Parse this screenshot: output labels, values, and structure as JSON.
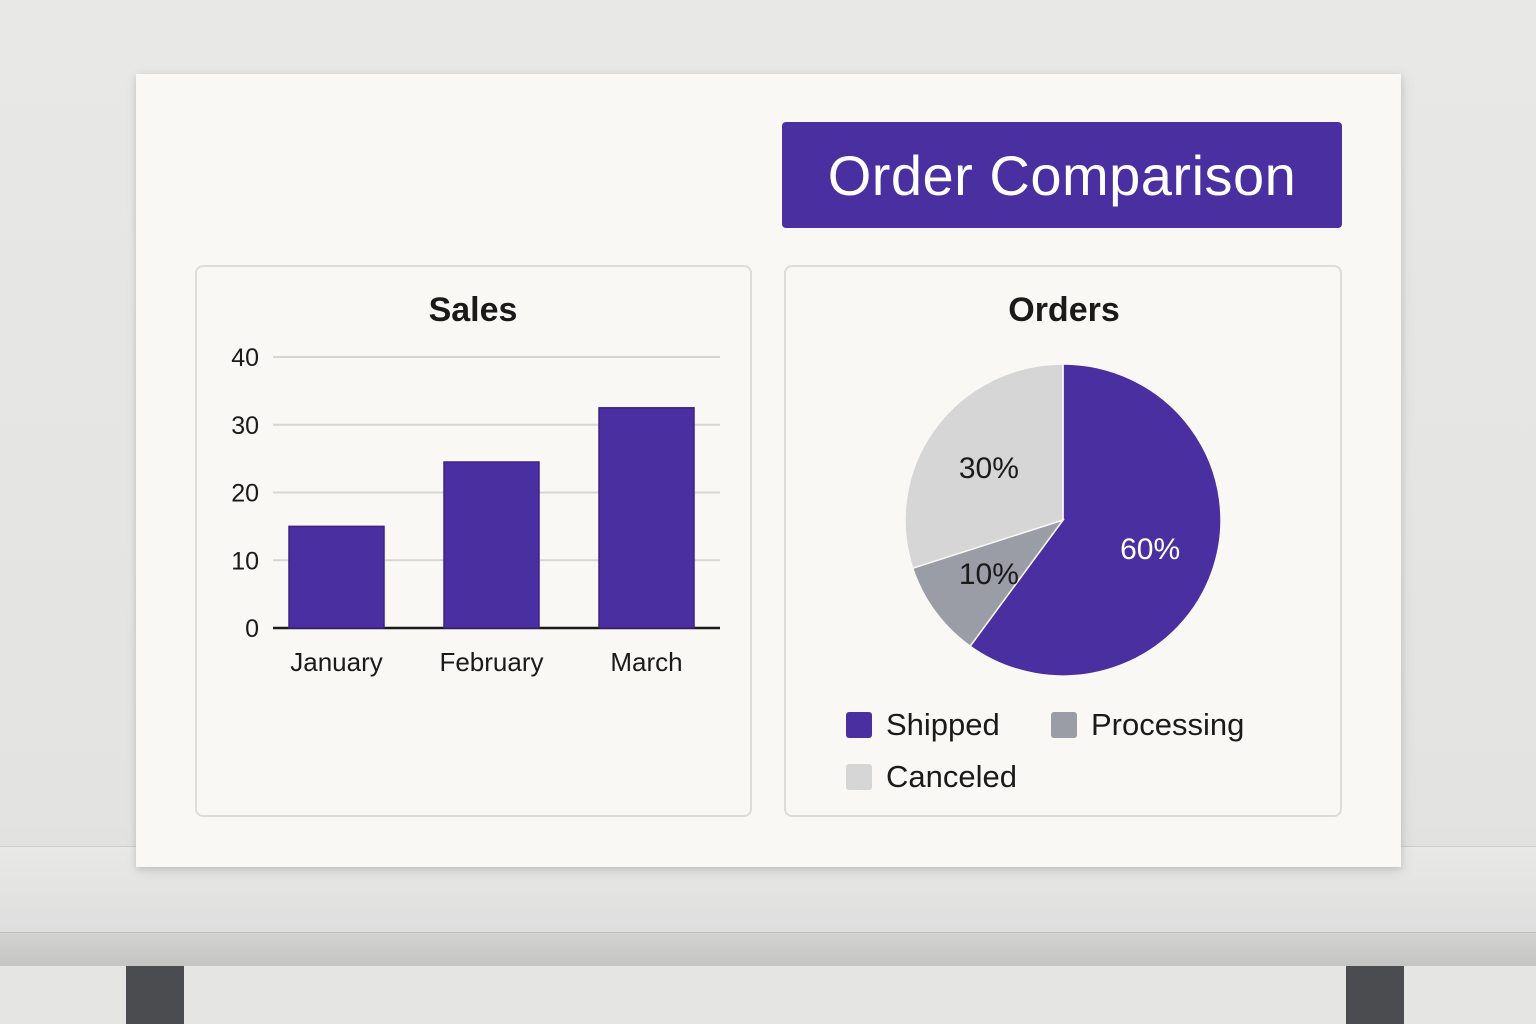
{
  "title": "Order Comparison",
  "colors": {
    "accent": "#4a2fa0",
    "processing": "#9a9ca6",
    "canceled": "#d6d6d6",
    "text": "#1a1a1a"
  },
  "chart_data": [
    {
      "type": "bar",
      "title": "Sales",
      "categories": [
        "January",
        "February",
        "March"
      ],
      "values": [
        15,
        24.5,
        32.5
      ],
      "yticks": [
        0,
        10,
        20,
        30,
        40
      ],
      "ylim": [
        0,
        40
      ],
      "xlabel": "",
      "ylabel": "",
      "grid": true,
      "color": "#4a2fa0"
    },
    {
      "type": "pie",
      "title": "Orders",
      "slices": [
        {
          "name": "Shipped",
          "value": 60,
          "label": "60%",
          "color": "#4a2fa0",
          "label_color": "#ffffff"
        },
        {
          "name": "Processing",
          "value": 10,
          "label": "10%",
          "color": "#9a9ca6",
          "label_color": "#1a1a1a"
        },
        {
          "name": "Canceled",
          "value": 30,
          "label": "30%",
          "color": "#d6d6d6",
          "label_color": "#1a1a1a"
        }
      ],
      "legend": "bottom"
    }
  ]
}
